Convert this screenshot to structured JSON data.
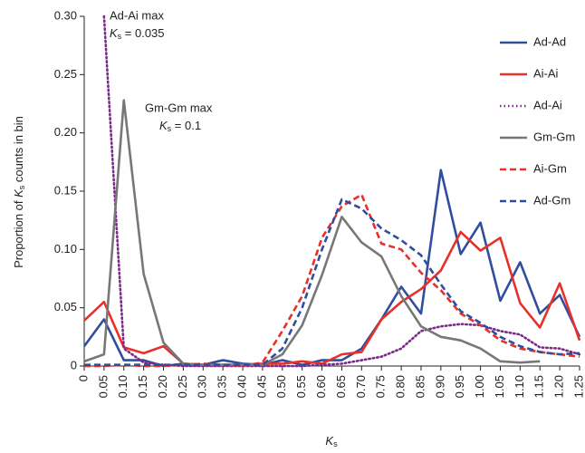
{
  "chart_data": {
    "type": "line",
    "x": [
      0,
      0.05,
      0.1,
      0.15,
      0.2,
      0.25,
      0.3,
      0.35,
      0.4,
      0.45,
      0.5,
      0.55,
      0.6,
      0.65,
      0.7,
      0.75,
      0.8,
      0.85,
      0.9,
      0.95,
      1.0,
      1.05,
      1.1,
      1.15,
      1.2,
      1.25
    ],
    "series": [
      {
        "name": "Ad-Ad",
        "color": "#2f4e9e",
        "dash": "solid",
        "values": [
          0.017,
          0.04,
          0.005,
          0.005,
          0.0,
          0.002,
          0.001,
          0.005,
          0.002,
          0.001,
          0.005,
          0.001,
          0.005,
          0.005,
          0.015,
          0.04,
          0.068,
          0.045,
          0.168,
          0.096,
          0.123,
          0.056,
          0.089,
          0.045,
          0.061,
          0.025
        ]
      },
      {
        "name": "Ai-Ai",
        "color": "#e8302a",
        "dash": "solid",
        "values": [
          0.039,
          0.055,
          0.016,
          0.011,
          0.017,
          0.002,
          0.001,
          0.001,
          0.001,
          0.002,
          0.002,
          0.004,
          0.002,
          0.01,
          0.012,
          0.04,
          0.055,
          0.066,
          0.082,
          0.115,
          0.099,
          0.11,
          0.054,
          0.033,
          0.071,
          0.022
        ]
      },
      {
        "name": "Ad-Ai",
        "color": "#7b2a8a",
        "dash": "dotted",
        "values": [
          null,
          0.3,
          0.015,
          0.003,
          0.001,
          0.0,
          0.0,
          0.0,
          0.0,
          0.0,
          0.0,
          0.0,
          0.001,
          0.002,
          0.005,
          0.008,
          0.015,
          0.03,
          0.034,
          0.036,
          0.035,
          0.03,
          0.027,
          0.016,
          0.015,
          0.01
        ]
      },
      {
        "name": "Gm-Gm",
        "color": "#777777",
        "dash": "solid",
        "values": [
          0.004,
          0.01,
          0.228,
          0.079,
          0.02,
          0.002,
          0.001,
          0.001,
          0.001,
          0.001,
          0.01,
          0.035,
          0.078,
          0.128,
          0.106,
          0.094,
          0.06,
          0.034,
          0.025,
          0.022,
          0.015,
          0.004,
          0.003,
          0.004,
          null,
          null
        ]
      },
      {
        "name": "Ai-Gm",
        "color": "#e8302a",
        "dash": "dashed",
        "values": [
          0.0,
          0.0,
          0.001,
          0.0,
          0.0,
          0.001,
          0.002,
          0.001,
          0.0,
          0.003,
          0.03,
          0.06,
          0.11,
          0.137,
          0.147,
          0.105,
          0.1,
          0.08,
          0.065,
          0.045,
          0.035,
          0.022,
          0.015,
          0.012,
          0.01,
          0.008
        ]
      },
      {
        "name": "Ad-Gm",
        "color": "#2f4e9e",
        "dash": "dashed",
        "values": [
          0.001,
          0.001,
          0.001,
          0.001,
          0.001,
          0.001,
          0.001,
          0.001,
          0.001,
          0.001,
          0.015,
          0.05,
          0.1,
          0.143,
          0.135,
          0.118,
          0.108,
          0.095,
          0.07,
          0.047,
          0.037,
          0.025,
          0.017,
          0.012,
          0.01,
          0.011
        ]
      }
    ],
    "xlim": [
      0,
      1.25
    ],
    "ylim": [
      0,
      0.3
    ],
    "xticks": [
      0,
      0.05,
      {
        "value": 0.1,
        "label": "0.10"
      },
      0.15,
      {
        "value": 0.2,
        "label": "0.20"
      },
      0.25,
      {
        "value": 0.3,
        "label": "0.30"
      },
      0.35,
      {
        "value": 0.4,
        "label": "0.40"
      },
      0.45,
      {
        "value": 0.5,
        "label": "0.50"
      },
      0.55,
      {
        "value": 0.6,
        "label": "0.60"
      },
      0.65,
      {
        "value": 0.7,
        "label": "0.70"
      },
      0.75,
      {
        "value": 0.8,
        "label": "0.80"
      },
      0.85,
      {
        "value": 0.9,
        "label": "0.90"
      },
      0.95,
      {
        "value": 1.0,
        "label": "1.00"
      },
      1.05,
      {
        "value": 1.1,
        "label": "1.10"
      },
      1.15,
      {
        "value": 1.2,
        "label": "1.20"
      },
      1.25
    ],
    "yticks": [
      0,
      0.05,
      {
        "value": 0.1,
        "label": "0.10"
      },
      0.15,
      {
        "value": 0.2,
        "label": "0.20"
      },
      0.25,
      {
        "value": 0.3,
        "label": "0.30"
      }
    ],
    "xlabel": [
      "K",
      "s"
    ],
    "ylabel": [
      "Proportion of ",
      "K",
      "s",
      " counts in bin"
    ],
    "annotations": [
      {
        "lines": [
          "Ad-Ai max"
        ],
        "math": [
          "K",
          "s",
          " = 0.035"
        ]
      },
      {
        "lines": [
          "Gm-Gm max"
        ],
        "math": [
          "K",
          "s",
          " = 0.1"
        ]
      }
    ],
    "legend": "upper right"
  }
}
